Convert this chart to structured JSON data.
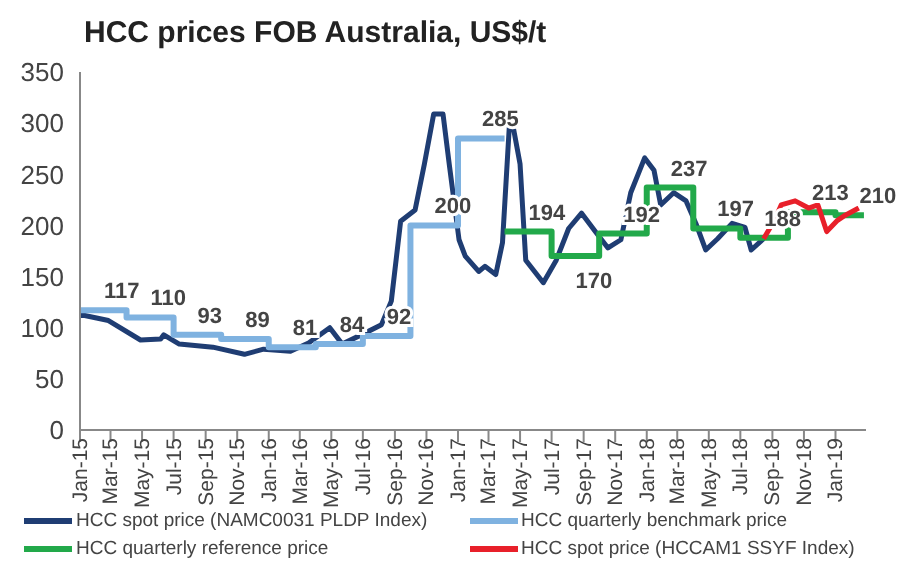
{
  "chart_data": {
    "type": "line",
    "title": "HCC prices FOB Australia, US$/t",
    "xlim": [
      "2015-01-01",
      "2019-03-01"
    ],
    "xticks": [
      {
        "value": "2015-01",
        "label": "Jan-15"
      },
      {
        "value": "2015-03",
        "label": "Mar-15"
      },
      {
        "value": "2015-05",
        "label": "May-15"
      },
      {
        "value": "2015-07",
        "label": "Jul-15"
      },
      {
        "value": "2015-09",
        "label": "Sep-15"
      },
      {
        "value": "2015-11",
        "label": "Nov-15"
      },
      {
        "value": "2016-01",
        "label": "Jan-16"
      },
      {
        "value": "2016-03",
        "label": "Mar-16"
      },
      {
        "value": "2016-05",
        "label": "May-16"
      },
      {
        "value": "2016-07",
        "label": "Jul-16"
      },
      {
        "value": "2016-09",
        "label": "Sep-16"
      },
      {
        "value": "2016-11",
        "label": "Nov-16"
      },
      {
        "value": "2017-01",
        "label": "Jan-17"
      },
      {
        "value": "2017-03",
        "label": "Mar-17"
      },
      {
        "value": "2017-05",
        "label": "May-17"
      },
      {
        "value": "2017-07",
        "label": "Jul-17"
      },
      {
        "value": "2017-09",
        "label": "Sep-17"
      },
      {
        "value": "2017-11",
        "label": "Nov-17"
      },
      {
        "value": "2018-01",
        "label": "Jan-18"
      },
      {
        "value": "2018-03",
        "label": "Mar-18"
      },
      {
        "value": "2018-05",
        "label": "May-18"
      },
      {
        "value": "2018-07",
        "label": "Jul-18"
      },
      {
        "value": "2018-09",
        "label": "Sep-18"
      },
      {
        "value": "2018-11",
        "label": "Nov-18"
      },
      {
        "value": "2019-01",
        "label": "Jan-19"
      }
    ],
    "ylim": [
      0,
      350
    ],
    "yticks": [
      0,
      50,
      100,
      150,
      200,
      250,
      300,
      350
    ],
    "grid": false,
    "legend": "bottom",
    "marker": "none",
    "series": [
      {
        "name": "HCC spot price (NAMC0031 PLDP Index)",
        "color": "#1f3d73",
        "x": [
          "2015-01-01",
          "2015-01-10",
          "2015-02-25",
          "2015-04-28",
          "2015-06-06",
          "2015-06-12",
          "2015-07-12",
          "2015-09-15",
          "2015-11-15",
          "2015-12-22",
          "2016-02-12",
          "2016-03-18",
          "2016-04-28",
          "2016-05-22",
          "2016-06-28",
          "2016-08-06",
          "2016-08-25",
          "2016-09-12",
          "2016-10-10",
          "2016-10-28",
          "2016-11-15",
          "2016-12-03",
          "2016-12-15",
          "2017-01-03",
          "2017-01-15",
          "2017-02-10",
          "2017-02-22",
          "2017-03-15",
          "2017-03-28",
          "2017-04-12",
          "2017-05-01",
          "2017-05-12",
          "2017-06-15",
          "2017-07-10",
          "2017-08-03",
          "2017-08-28",
          "2017-09-25",
          "2017-10-18",
          "2017-11-12",
          "2017-12-01",
          "2017-12-28",
          "2018-01-15",
          "2018-01-28",
          "2018-02-22",
          "2018-03-18",
          "2018-04-06",
          "2018-04-25",
          "2018-05-18",
          "2018-06-15",
          "2018-07-10",
          "2018-07-22",
          "2018-08-15"
        ],
        "values": [
          112,
          112,
          107,
          88,
          89,
          93,
          84,
          81,
          74,
          79,
          77,
          85,
          100,
          84,
          93,
          103,
          126,
          204,
          215,
          260,
          309,
          309,
          260,
          186,
          170,
          155,
          160,
          152,
          183,
          312,
          260,
          166,
          144,
          166,
          197,
          212,
          193,
          178,
          186,
          232,
          266,
          254,
          220,
          232,
          224,
          202,
          176,
          187,
          202,
          198,
          176,
          187
        ]
      },
      {
        "name": "HCC quarterly benchmark price",
        "color": "#7fb2e0",
        "type": "step",
        "x": [
          "2015-01-01",
          "2015-04-01",
          "2015-07-01",
          "2015-10-01",
          "2016-01-01",
          "2016-04-01",
          "2016-07-01",
          "2016-10-01",
          "2017-01-01",
          "2017-04-01"
        ],
        "values": [
          117,
          110,
          93,
          89,
          81,
          84,
          92,
          200,
          285,
          285
        ],
        "value_labels": [
          "117",
          "110",
          "93",
          "89",
          "81",
          "84",
          "92",
          "200",
          "285",
          null
        ]
      },
      {
        "name": "HCC quarterly reference price",
        "color": "#22a94a",
        "type": "step",
        "x": [
          "2017-04-01",
          "2017-07-01",
          "2017-10-01",
          "2018-01-01",
          "2018-04-01",
          "2018-07-01",
          "2018-10-01",
          "2019-01-01",
          "2019-02-25"
        ],
        "values": [
          194,
          170,
          192,
          237,
          197,
          188,
          213,
          210,
          210
        ],
        "value_labels": [
          "194",
          "170",
          "192",
          "237",
          "197",
          "188",
          "213",
          "210",
          null
        ]
      },
      {
        "name": "HCC spot price (HCCAM1 SSYF Index)",
        "color": "#e8202a",
        "x": [
          "2018-08-15",
          "2018-09-05",
          "2018-09-18",
          "2018-10-15",
          "2018-11-10",
          "2018-11-28",
          "2018-12-15",
          "2019-01-05",
          "2019-01-20",
          "2019-02-15"
        ],
        "values": [
          187,
          205,
          220,
          224,
          217,
          220,
          194,
          205,
          210,
          217
        ]
      }
    ]
  }
}
